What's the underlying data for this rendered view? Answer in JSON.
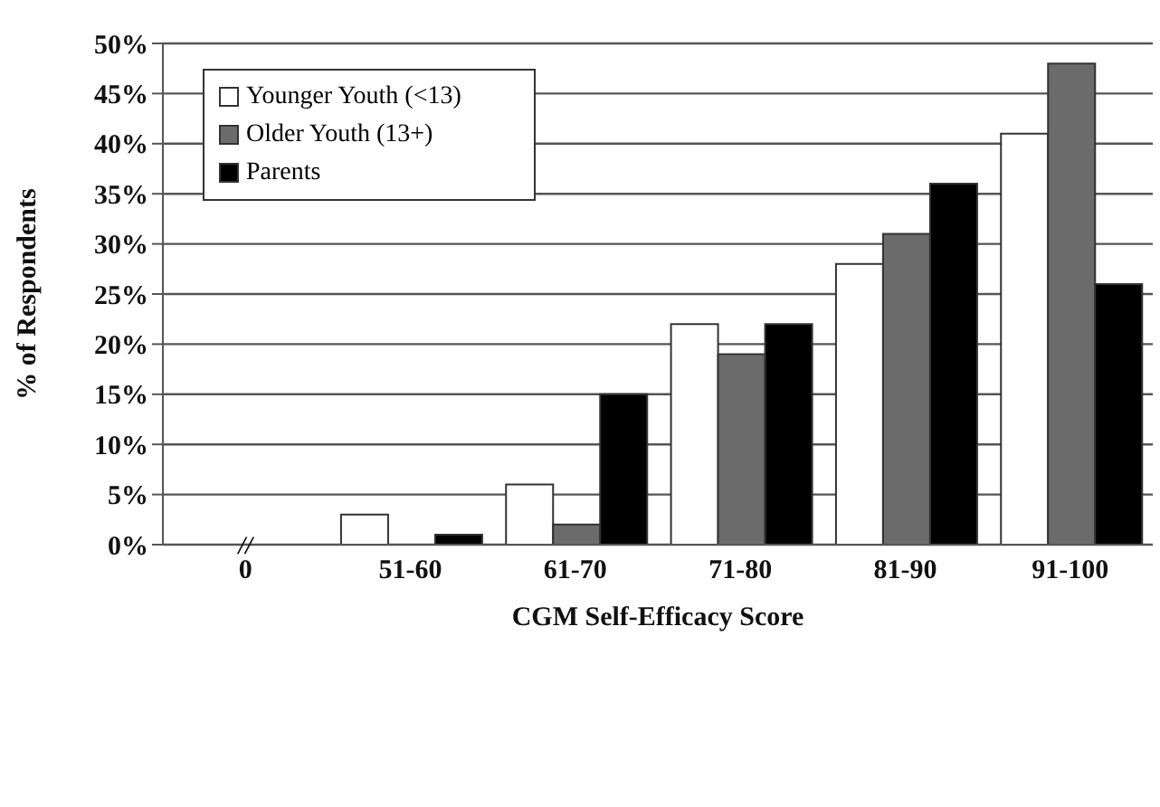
{
  "chart_data": {
    "type": "bar",
    "xlabel": "CGM Self-Efficacy Score",
    "ylabel": "% of Respondents",
    "categories": [
      "0",
      "51-60",
      "61-70",
      "71-80",
      "81-90",
      "91-100"
    ],
    "series": [
      {
        "name": "Younger Youth (<13)",
        "color": "#ffffff",
        "values": [
          null,
          3,
          6,
          22,
          28,
          41
        ]
      },
      {
        "name": "Older Youth (13+)",
        "color": "#6b6b6b",
        "values": [
          null,
          0,
          2,
          19,
          31,
          48
        ]
      },
      {
        "name": "Parents",
        "color": "#000000",
        "values": [
          null,
          1,
          15,
          22,
          36,
          26
        ]
      }
    ],
    "ylim": [
      0,
      50
    ],
    "yticks": [
      {
        "value": 0,
        "label": "0%"
      },
      {
        "value": 5,
        "label": "5%"
      },
      {
        "value": 10,
        "label": "10%"
      },
      {
        "value": 15,
        "label": "15%"
      },
      {
        "value": 20,
        "label": "20%"
      },
      {
        "value": 25,
        "label": "25%"
      },
      {
        "value": 30,
        "label": "30%"
      },
      {
        "value": 35,
        "label": "35%"
      },
      {
        "value": 40,
        "label": "40%"
      },
      {
        "value": 45,
        "label": "45%"
      },
      {
        "value": 50,
        "label": "50%"
      }
    ],
    "grid": "y",
    "legend": "top left",
    "annotations": [
      "//"
    ]
  }
}
